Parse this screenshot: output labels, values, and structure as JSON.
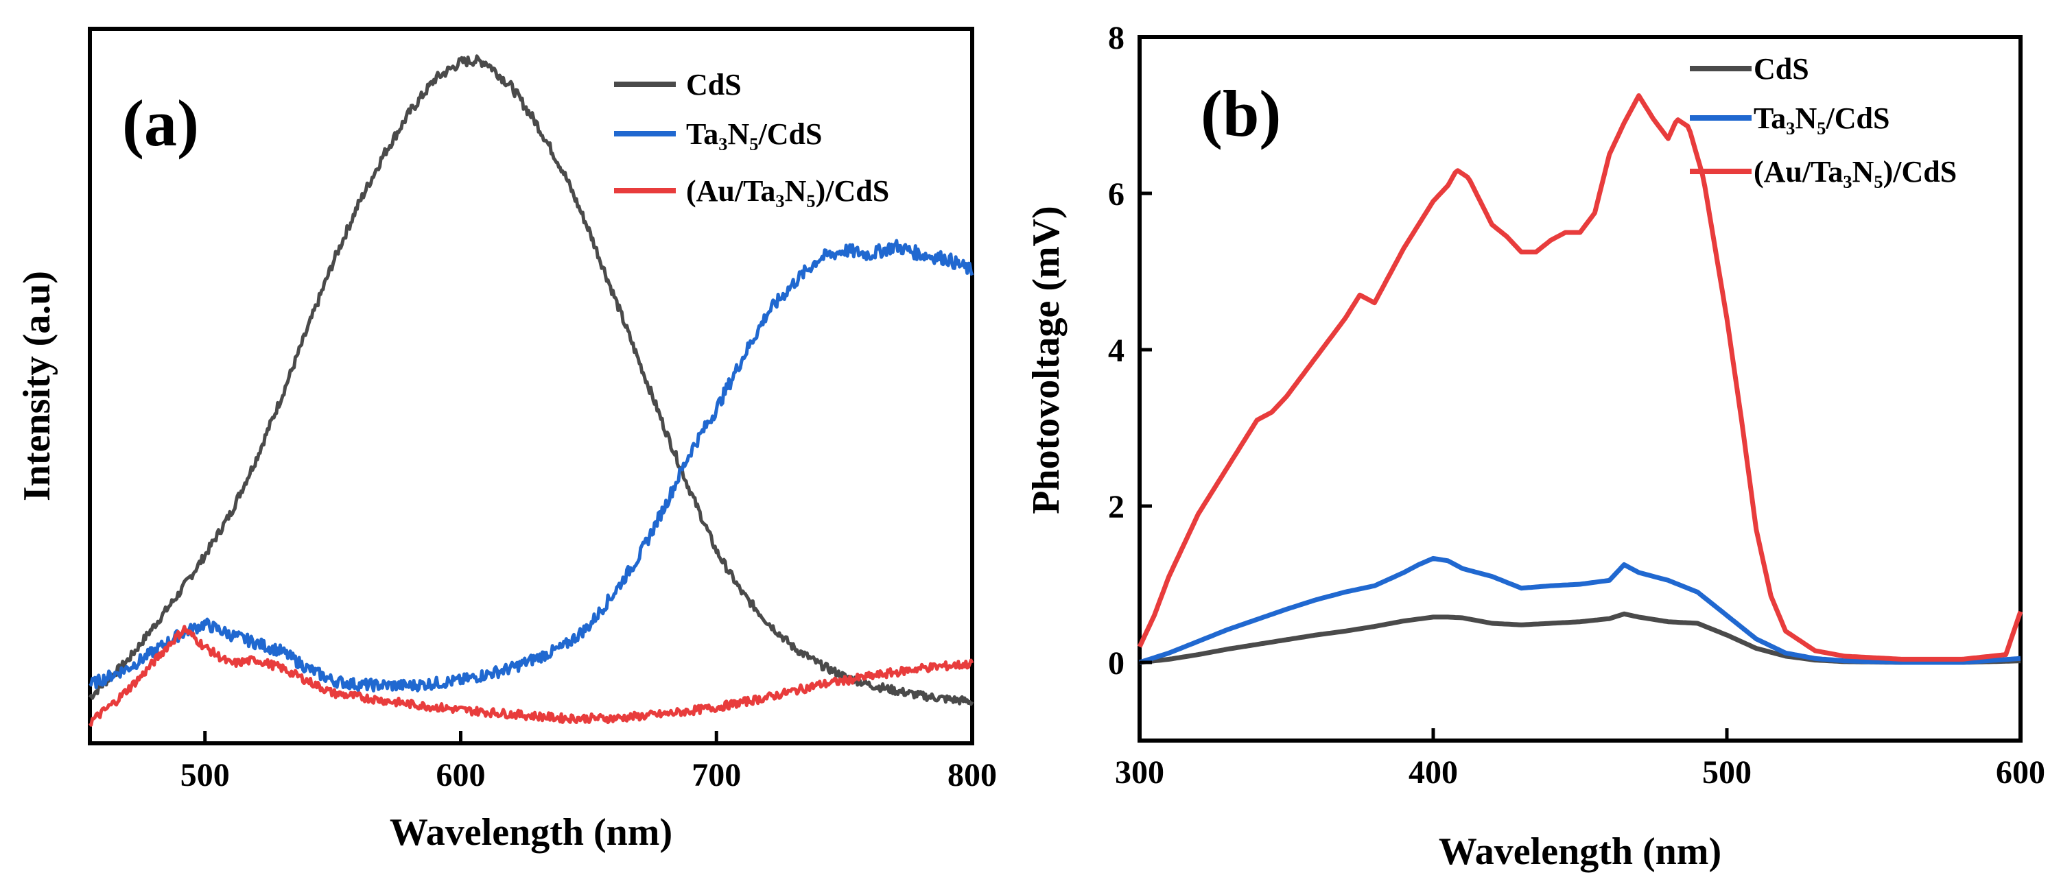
{
  "chart_data": [
    {
      "type": "line",
      "panel_label": "(a)",
      "xlabel": "Wavelength (nm)",
      "ylabel": "Intensity (a.u)",
      "xlim": [
        455,
        800
      ],
      "ylim": [
        -0.55,
        8.0
      ],
      "y_ticks_shown": false,
      "x_ticks": [
        500,
        600,
        700,
        800
      ],
      "x_tick_labels": [
        "500",
        "600",
        "700",
        "800"
      ],
      "legend_position": "top-right",
      "series": [
        {
          "name": "CdS",
          "color": "#4a4a4a",
          "noise": 0.05,
          "x": [
            455,
            470,
            480,
            490,
            500,
            510,
            520,
            530,
            540,
            550,
            560,
            570,
            580,
            590,
            600,
            605,
            610,
            620,
            630,
            640,
            650,
            660,
            670,
            680,
            690,
            700,
            710,
            720,
            730,
            740,
            750,
            760,
            770,
            780,
            790,
            800
          ],
          "y": [
            0.0,
            0.45,
            0.85,
            1.25,
            1.7,
            2.2,
            2.85,
            3.6,
            4.4,
            5.2,
            5.9,
            6.5,
            7.0,
            7.4,
            7.6,
            7.62,
            7.6,
            7.3,
            6.85,
            6.3,
            5.6,
            4.8,
            4.0,
            3.2,
            2.45,
            1.75,
            1.25,
            0.9,
            0.6,
            0.4,
            0.25,
            0.15,
            0.08,
            0.02,
            -0.02,
            -0.05
          ]
        },
        {
          "name": "Ta₃N₅/CdS",
          "color": "#2068d0",
          "noise": 0.07,
          "x": [
            455,
            470,
            480,
            490,
            500,
            510,
            520,
            530,
            540,
            550,
            560,
            580,
            600,
            620,
            640,
            650,
            660,
            670,
            680,
            690,
            700,
            710,
            720,
            730,
            740,
            750,
            760,
            770,
            780,
            790,
            800
          ],
          "y": [
            0.15,
            0.35,
            0.55,
            0.75,
            0.88,
            0.75,
            0.65,
            0.55,
            0.35,
            0.2,
            0.15,
            0.14,
            0.2,
            0.35,
            0.6,
            0.85,
            1.25,
            1.7,
            2.3,
            2.95,
            3.45,
            4.05,
            4.6,
            4.95,
            5.25,
            5.35,
            5.3,
            5.4,
            5.3,
            5.25,
            5.1
          ]
        },
        {
          "name": "(Au/Ta₃N₅)/CdS",
          "color": "#e83c3c",
          "noise": 0.05,
          "x": [
            455,
            465,
            475,
            485,
            492,
            500,
            510,
            520,
            530,
            540,
            550,
            580,
            600,
            620,
            640,
            660,
            680,
            700,
            720,
            740,
            760,
            780,
            800
          ],
          "y": [
            -0.3,
            -0.05,
            0.25,
            0.6,
            0.82,
            0.6,
            0.4,
            0.45,
            0.35,
            0.2,
            0.05,
            -0.08,
            -0.15,
            -0.2,
            -0.25,
            -0.25,
            -0.2,
            -0.12,
            0.0,
            0.15,
            0.25,
            0.35,
            0.4
          ]
        }
      ]
    },
    {
      "type": "line",
      "panel_label": "(b)",
      "xlabel": "Wavelength (nm)",
      "ylabel": "Photovoltage (mV)",
      "xlim": [
        300,
        600
      ],
      "ylim": [
        -1,
        8
      ],
      "x_ticks": [
        300,
        400,
        500,
        600
      ],
      "x_tick_labels": [
        "300",
        "400",
        "500",
        "600"
      ],
      "y_ticks": [
        0,
        2,
        4,
        6,
        8
      ],
      "y_tick_labels": [
        "0",
        "2",
        "4",
        "6",
        "8"
      ],
      "legend_position": "top-right",
      "series": [
        {
          "name": "CdS",
          "color": "#4a4a4a",
          "noise": 0,
          "x": [
            300,
            310,
            320,
            330,
            340,
            350,
            360,
            370,
            380,
            390,
            400,
            405,
            410,
            420,
            430,
            440,
            450,
            460,
            465,
            470,
            480,
            490,
            500,
            510,
            520,
            530,
            540,
            560,
            580,
            600
          ],
          "y": [
            0.0,
            0.04,
            0.1,
            0.17,
            0.23,
            0.29,
            0.35,
            0.4,
            0.46,
            0.53,
            0.58,
            0.58,
            0.57,
            0.5,
            0.48,
            0.5,
            0.52,
            0.56,
            0.62,
            0.58,
            0.52,
            0.5,
            0.35,
            0.18,
            0.08,
            0.03,
            0.01,
            0.0,
            0.0,
            0.02
          ]
        },
        {
          "name": "Ta₃N₅/CdS",
          "color": "#2068d0",
          "noise": 0,
          "x": [
            300,
            310,
            320,
            330,
            340,
            350,
            360,
            370,
            380,
            390,
            395,
            400,
            405,
            410,
            420,
            430,
            440,
            450,
            460,
            465,
            470,
            480,
            490,
            500,
            510,
            520,
            530,
            540,
            560,
            580,
            600
          ],
          "y": [
            0.0,
            0.12,
            0.27,
            0.42,
            0.55,
            0.68,
            0.8,
            0.9,
            0.98,
            1.15,
            1.25,
            1.33,
            1.3,
            1.2,
            1.1,
            0.95,
            0.98,
            1.0,
            1.05,
            1.25,
            1.15,
            1.05,
            0.9,
            0.6,
            0.3,
            0.12,
            0.05,
            0.02,
            0.0,
            0.0,
            0.05
          ]
        },
        {
          "name": "(Au/Ta₃N₅)/CdS",
          "color": "#e83c3c",
          "noise": 0,
          "x": [
            300,
            305,
            310,
            320,
            330,
            340,
            345,
            350,
            360,
            370,
            375,
            380,
            390,
            400,
            405,
            408,
            412,
            420,
            425,
            430,
            435,
            440,
            445,
            450,
            455,
            460,
            465,
            470,
            475,
            480,
            483,
            487,
            492,
            500,
            505,
            510,
            515,
            520,
            530,
            540,
            560,
            580,
            595,
            600
          ],
          "y": [
            0.2,
            0.6,
            1.1,
            1.9,
            2.5,
            3.1,
            3.2,
            3.4,
            3.9,
            4.4,
            4.7,
            4.6,
            5.3,
            5.9,
            6.1,
            6.3,
            6.2,
            5.6,
            5.45,
            5.25,
            5.25,
            5.4,
            5.5,
            5.5,
            5.75,
            6.5,
            6.9,
            7.25,
            6.95,
            6.7,
            6.95,
            6.85,
            6.2,
            4.4,
            3.1,
            1.7,
            0.85,
            0.4,
            0.15,
            0.08,
            0.04,
            0.04,
            0.1,
            0.65
          ]
        }
      ]
    }
  ]
}
